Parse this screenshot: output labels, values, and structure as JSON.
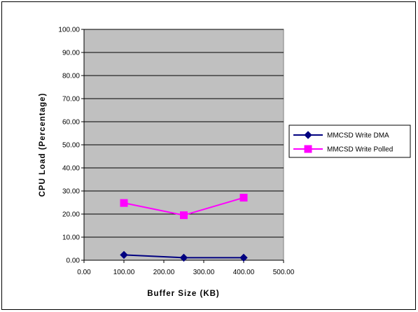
{
  "chart_data": {
    "type": "line",
    "title": "",
    "xlabel": "Buffer Size (KB)",
    "ylabel": "CPU Load (Percentage)",
    "xlim": [
      0,
      500
    ],
    "ylim": [
      0,
      100
    ],
    "x_ticks": [
      "0.00",
      "100.00",
      "200.00",
      "300.00",
      "400.00",
      "500.00"
    ],
    "y_ticks": [
      "0.00",
      "10.00",
      "20.00",
      "30.00",
      "40.00",
      "50.00",
      "60.00",
      "70.00",
      "80.00",
      "90.00",
      "100.00"
    ],
    "grid": true,
    "legend_position": "right",
    "plot_background": "#c0c0c0",
    "series": [
      {
        "name": "MMCSD Write DMA",
        "color": "#000080",
        "marker": "diamond",
        "x": [
          100,
          250,
          400
        ],
        "y": [
          2.3,
          1.1,
          1.1
        ]
      },
      {
        "name": "MMCSD Write Polled",
        "color": "#ff00ff",
        "marker": "square",
        "x": [
          100,
          250,
          400
        ],
        "y": [
          24.8,
          19.5,
          27.1
        ]
      }
    ]
  }
}
